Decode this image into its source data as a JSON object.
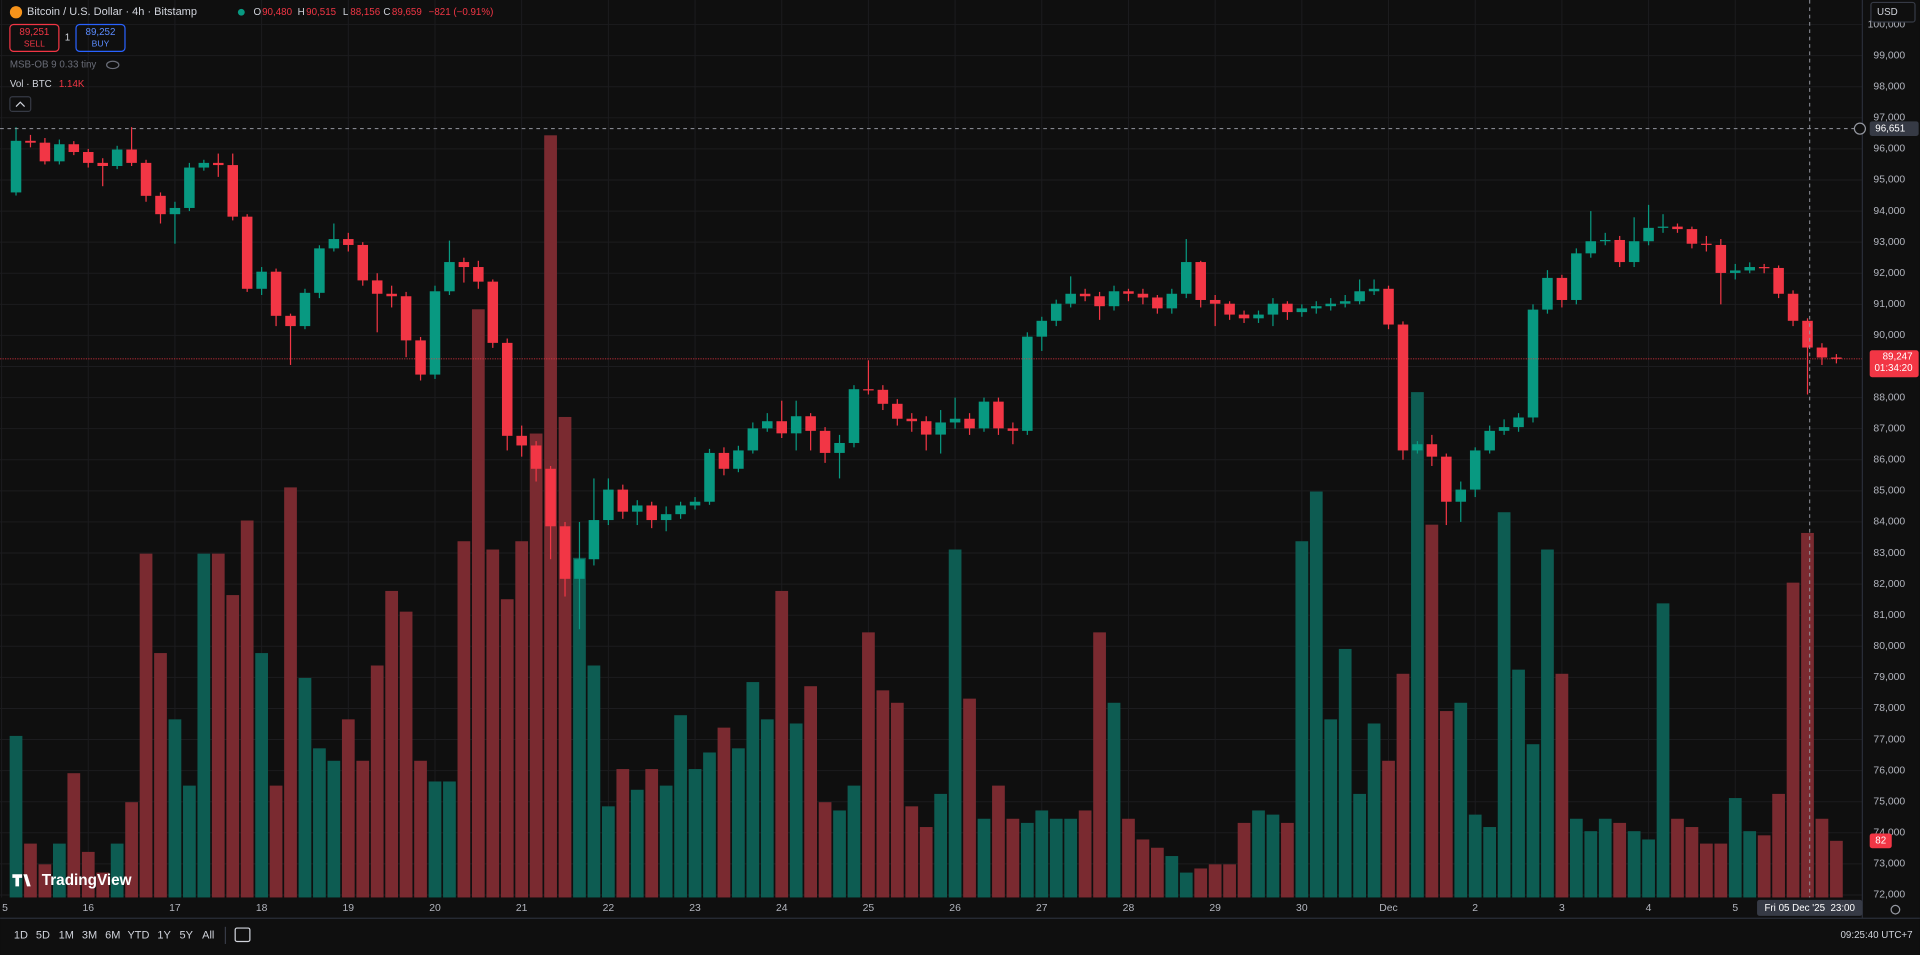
{
  "header": {
    "symbol": "Bitcoin / U.S. Dollar · 4h · Bitstamp",
    "o_key": "O",
    "o": "90,480",
    "h_key": "H",
    "h": "90,515",
    "l_key": "L",
    "l": "88,156",
    "c_key": "C",
    "c": "89,659",
    "change": "−821 (−0.91%)"
  },
  "trade": {
    "sell_price": "89,251",
    "sell": "SELL",
    "qty": "1",
    "buy_price": "89,252",
    "buy": "BUY"
  },
  "indicators": {
    "msb": "MSB-OB 9 0.33 tiny",
    "vol": "Vol · BTC",
    "vol_value": "1.14K"
  },
  "currency": "USD",
  "logo": "TradingView",
  "ranges": [
    "1D",
    "5D",
    "1M",
    "3M",
    "6M",
    "YTD",
    "1Y",
    "5Y",
    "All"
  ],
  "clock": "09:25:40 UTC+7",
  "chart_data": {
    "type": "candlestick",
    "categories": [
      "5",
      null,
      null,
      null,
      null,
      null,
      "16",
      null,
      null,
      null,
      null,
      null,
      "17",
      null,
      null,
      null,
      null,
      null,
      "18",
      null,
      null,
      null,
      null,
      null,
      "19",
      null,
      null,
      null,
      null,
      null,
      "20",
      null,
      null,
      null,
      null,
      null,
      "21",
      null,
      null,
      null,
      null,
      null,
      "22",
      null,
      null,
      null,
      null,
      null,
      "23",
      null,
      null,
      null,
      null,
      null,
      "24",
      null,
      null,
      null,
      null,
      null,
      "25",
      null,
      null,
      null,
      null,
      null,
      "26",
      null,
      null,
      null,
      null,
      null,
      "27",
      null,
      null,
      null,
      null,
      null,
      "28",
      null,
      null,
      null,
      null,
      null,
      "29",
      null,
      null,
      null,
      null,
      null,
      "30",
      null,
      null,
      null,
      null,
      null,
      "Dec",
      null,
      null,
      null,
      null,
      null,
      "2",
      null,
      null,
      null,
      null,
      null,
      "3",
      null,
      null,
      null,
      null,
      null,
      "4",
      null,
      null,
      null,
      null,
      null,
      "5",
      null,
      null,
      null,
      null,
      null,
      null,
      null
    ],
    "open": [
      null,
      94600,
      96260,
      96200,
      95600,
      96150,
      95900,
      95550,
      95450,
      95980,
      95550,
      94490,
      93900,
      94100,
      95400,
      95550,
      95480,
      93820,
      91500,
      92050,
      90630,
      90300,
      91370,
      92800,
      93100,
      92910,
      91770,
      91340,
      91260,
      89840,
      88740,
      91420,
      92360,
      92200,
      91730,
      89760,
      86770,
      86460,
      85710,
      83860,
      82170,
      82800,
      84060,
      85040,
      84330,
      84530,
      84060,
      84250,
      84530,
      84650,
      86220,
      85710,
      86300,
      87010,
      87240,
      86850,
      87400,
      86930,
      86220,
      86540,
      88270,
      88250,
      87800,
      87320,
      87240,
      86810,
      87200,
      87320,
      87010,
      87870,
      87010,
      86930,
      89960,
      90470,
      91020,
      91340,
      91260,
      90940,
      91420,
      91340,
      91220,
      90870,
      91340,
      92360,
      91140,
      91020,
      90670,
      90550,
      90670,
      91020,
      90750,
      90870,
      90940,
      91020,
      91100,
      91420,
      91500,
      90350,
      86300,
      86500,
      86100,
      84650,
      85040,
      86300,
      86930,
      87050,
      87360,
      90830,
      91850,
      91140,
      92640,
      93030,
      93070,
      92360,
      93030,
      93460,
      93500,
      93420,
      92950,
      92910,
      92010,
      92090,
      92200,
      92170,
      91340,
      90470,
      89610,
      89290
    ],
    "high": [
      null,
      96700,
      96450,
      96350,
      96300,
      96250,
      96000,
      95700,
      96100,
      96700,
      95650,
      94600,
      94300,
      95550,
      95650,
      95850,
      95850,
      93900,
      92200,
      92150,
      90700,
      91500,
      92900,
      93600,
      93300,
      93000,
      92000,
      91600,
      91400,
      89950,
      91600,
      93050,
      92500,
      92400,
      91800,
      89900,
      87100,
      86600,
      85800,
      84000,
      84000,
      85400,
      85400,
      85200,
      84700,
      84650,
      84500,
      84650,
      84800,
      86350,
      86400,
      86450,
      87200,
      87500,
      87900,
      87900,
      87500,
      87050,
      86800,
      88400,
      89200,
      88400,
      87950,
      87500,
      87400,
      87600,
      88000,
      87500,
      88000,
      88000,
      87200,
      90100,
      90600,
      91150,
      91900,
      91500,
      91400,
      91600,
      91500,
      91500,
      91300,
      91500,
      93100,
      92400,
      91300,
      91100,
      90800,
      90800,
      91200,
      91100,
      91000,
      91100,
      91200,
      91300,
      91800,
      91800,
      91600,
      90450,
      86600,
      86800,
      86200,
      85300,
      86400,
      87100,
      87300,
      87500,
      91000,
      92100,
      91950,
      92800,
      94000,
      93300,
      93200,
      93800,
      94200,
      93900,
      93600,
      93500,
      93200,
      93100,
      92300,
      92350,
      92300,
      92250,
      91450,
      90550,
      89750,
      89400
    ],
    "low": [
      null,
      94500,
      96050,
      95500,
      95500,
      95800,
      95400,
      94800,
      95350,
      95450,
      94300,
      93600,
      92950,
      94000,
      95300,
      95100,
      93700,
      91400,
      91300,
      90300,
      89050,
      90200,
      91200,
      92700,
      92700,
      91600,
      90100,
      90900,
      89300,
      88550,
      88600,
      91300,
      91700,
      91500,
      89600,
      86300,
      86100,
      85300,
      82800,
      81600,
      80550,
      82600,
      83900,
      84100,
      83900,
      83800,
      83700,
      84100,
      84400,
      84550,
      85500,
      85600,
      86200,
      86900,
      86700,
      86300,
      86300,
      85900,
      85400,
      86400,
      88100,
      87600,
      87100,
      86900,
      86300,
      86200,
      87000,
      86800,
      86900,
      86800,
      86500,
      86800,
      89500,
      90300,
      90900,
      91100,
      90500,
      90800,
      91100,
      91000,
      90700,
      90700,
      91200,
      90900,
      90300,
      90500,
      90400,
      90400,
      90300,
      90500,
      90600,
      90700,
      90800,
      90900,
      91000,
      91300,
      90200,
      86000,
      86200,
      85800,
      83900,
      84000,
      84800,
      86200,
      86800,
      86900,
      87200,
      90700,
      90900,
      91000,
      92500,
      92900,
      92200,
      92200,
      92900,
      93300,
      93300,
      92800,
      92700,
      91000,
      91800,
      92000,
      92000,
      91200,
      90300,
      88100,
      89050,
      89100
    ],
    "close": [
      null,
      96260,
      96200,
      95600,
      96150,
      95900,
      95550,
      95450,
      95980,
      95550,
      94490,
      93900,
      94100,
      95400,
      95550,
      95480,
      93820,
      91500,
      92050,
      90630,
      90300,
      91370,
      92800,
      93100,
      92910,
      91770,
      91340,
      91260,
      89840,
      88740,
      91420,
      92360,
      92200,
      91730,
      89760,
      86770,
      86460,
      85710,
      83860,
      82170,
      82800,
      84060,
      85040,
      84330,
      84530,
      84060,
      84250,
      84530,
      84650,
      86220,
      85710,
      86300,
      87010,
      87240,
      86850,
      87400,
      86930,
      86220,
      86540,
      88270,
      88250,
      87800,
      87320,
      87240,
      86810,
      87200,
      87320,
      87010,
      87870,
      87010,
      86930,
      89960,
      90470,
      91020,
      91340,
      91260,
      90940,
      91420,
      91340,
      91220,
      90870,
      91340,
      92360,
      91140,
      91020,
      90670,
      90550,
      90670,
      91020,
      90750,
      90870,
      90940,
      91020,
      91100,
      91420,
      91500,
      90350,
      86300,
      86500,
      86100,
      84650,
      85040,
      86300,
      86930,
      87050,
      87360,
      90830,
      91850,
      91140,
      92640,
      93030,
      93070,
      92360,
      93030,
      93460,
      93500,
      93420,
      92950,
      92910,
      92010,
      92090,
      92200,
      92170,
      91340,
      90470,
      89610,
      89290,
      89247
    ],
    "volume": [
      null,
      234,
      78,
      48,
      78,
      180,
      66,
      36,
      78,
      138,
      498,
      354,
      258,
      162,
      498,
      498,
      438,
      546,
      354,
      162,
      594,
      318,
      216,
      198,
      258,
      198,
      336,
      444,
      414,
      198,
      168,
      168,
      516,
      852,
      504,
      432,
      516,
      672,
      1104,
      696,
      492,
      336,
      132,
      186,
      156,
      186,
      162,
      264,
      186,
      210,
      246,
      216,
      312,
      258,
      444,
      252,
      306,
      138,
      126,
      162,
      384,
      300,
      282,
      132,
      102,
      150,
      504,
      288,
      114,
      162,
      114,
      108,
      126,
      114,
      114,
      126,
      384,
      282,
      114,
      84,
      72,
      60,
      36,
      42,
      48,
      48,
      108,
      126,
      120,
      108,
      516,
      588,
      258,
      360,
      150,
      252,
      198,
      324,
      732,
      540,
      270,
      282,
      120,
      102,
      558,
      330,
      222,
      504,
      324,
      114,
      96,
      114,
      108,
      96,
      84,
      426,
      114,
      102,
      78,
      78,
      144,
      96,
      90,
      150,
      456,
      528,
      114,
      82
    ],
    "volume_badge": "82",
    "up_color": "#089981",
    "down_color": "#f23645",
    "volume_up_color": "#0d5c52",
    "volume_down_color": "#7a2a30",
    "ylim": [
      71920,
      100790
    ],
    "yticks": [
      {
        "value": 72000,
        "label": "72,000"
      },
      {
        "value": 73000,
        "label": "73,000"
      },
      {
        "value": 74000,
        "label": "74,000"
      },
      {
        "value": 75000,
        "label": "75,000"
      },
      {
        "value": 76000,
        "label": "76,000"
      },
      {
        "value": 77000,
        "label": "77,000"
      },
      {
        "value": 78000,
        "label": "78,000"
      },
      {
        "value": 79000,
        "label": "79,000"
      },
      {
        "value": 80000,
        "label": "80,000"
      },
      {
        "value": 81000,
        "label": "81,000"
      },
      {
        "value": 82000,
        "label": "82,000"
      },
      {
        "value": 83000,
        "label": "83,000"
      },
      {
        "value": 84000,
        "label": "84,000"
      },
      {
        "value": 85000,
        "label": "85,000"
      },
      {
        "value": 86000,
        "label": "86,000"
      },
      {
        "value": 87000,
        "label": "87,000"
      },
      {
        "value": 88000,
        "label": "88,000"
      },
      {
        "value": 89000,
        "label": "89,000"
      },
      {
        "value": 90000,
        "label": "90,000"
      },
      {
        "value": 91000,
        "label": "91,000"
      },
      {
        "value": 92000,
        "label": "92,000"
      },
      {
        "value": 93000,
        "label": "93,000"
      },
      {
        "value": 94000,
        "label": "94,000"
      },
      {
        "value": 95000,
        "label": "95,000"
      },
      {
        "value": 96000,
        "label": "96,000"
      },
      {
        "value": 97000,
        "label": "97,000"
      },
      {
        "value": 98000,
        "label": "98,000"
      },
      {
        "value": 99000,
        "label": "99,000"
      },
      {
        "value": 100000,
        "label": "100,000"
      }
    ],
    "vlim": [
      0,
      1300
    ],
    "grid": true,
    "last_price": {
      "value": 89247,
      "label": "89,247",
      "countdown": "01:34:20"
    },
    "crosshair": {
      "value": 96651,
      "label": "96,651",
      "time": "Fri 05 Dec '25  23:00"
    }
  }
}
